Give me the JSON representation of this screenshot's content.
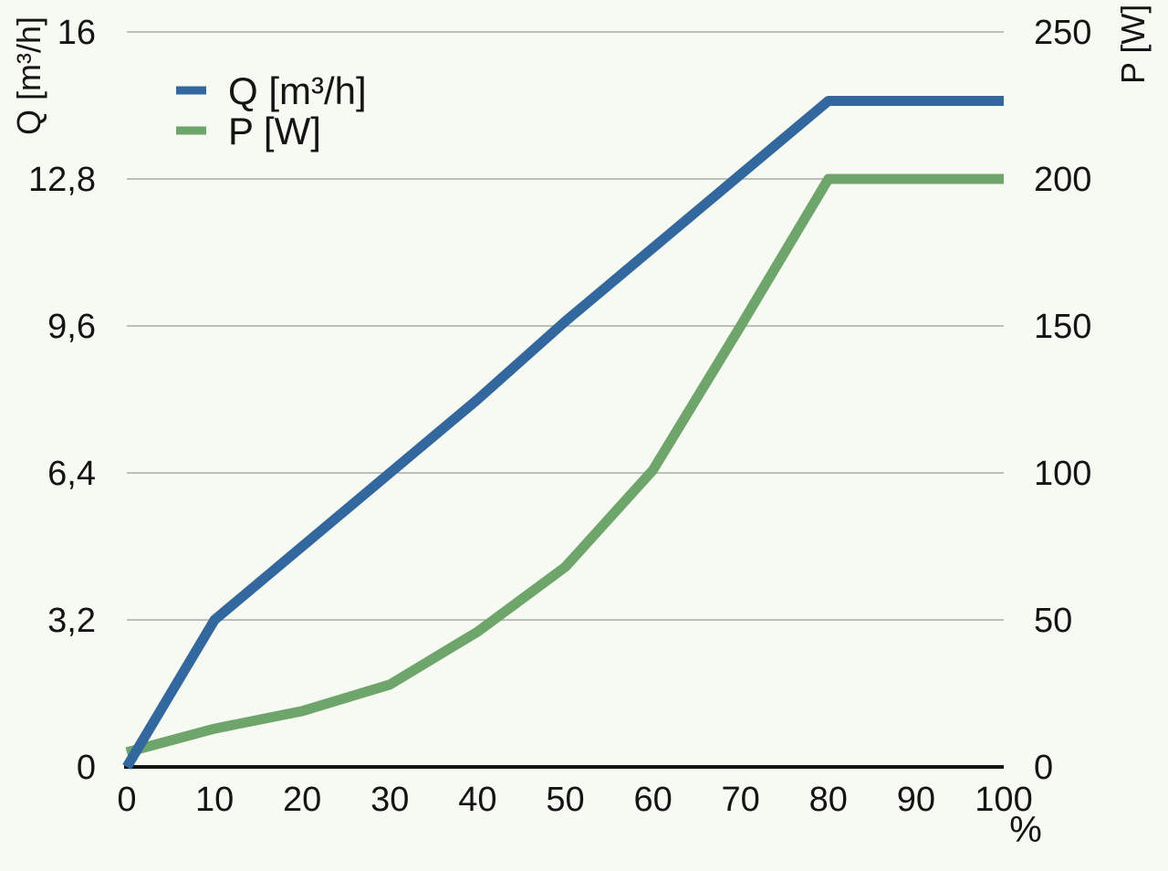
{
  "colors": {
    "background": "#f7faf2",
    "grid": "#bdbdbd",
    "axis": "#141414",
    "text": "#141414",
    "q_series": "#33689e",
    "p_series": "#6da56a"
  },
  "legend": {
    "position": "top-left-inside"
  },
  "chart_data": {
    "type": "line",
    "x": [
      0,
      10,
      20,
      30,
      40,
      50,
      60,
      70,
      80,
      90,
      100
    ],
    "x_axis": {
      "label": "%",
      "ticks": [
        "0",
        "10",
        "20",
        "30",
        "40",
        "50",
        "60",
        "70",
        "80",
        "90",
        "100"
      ],
      "tick_values": [
        0,
        10,
        20,
        30,
        40,
        50,
        60,
        70,
        80,
        90,
        100
      ],
      "min": 0,
      "max": 100
    },
    "left_axis": {
      "label": "Q [m³/h]",
      "ticks": [
        "0",
        "3,2",
        "6,4",
        "9,6",
        "12,8",
        "16"
      ],
      "tick_values": [
        0,
        3.2,
        6.4,
        9.6,
        12.8,
        16
      ],
      "min": 0,
      "max": 16
    },
    "right_axis": {
      "label": "P [W]",
      "ticks": [
        "0",
        "50",
        "100",
        "150",
        "200",
        "250"
      ],
      "tick_values": [
        0,
        50,
        100,
        150,
        200,
        250
      ],
      "min": 0,
      "max": 250
    },
    "series": [
      {
        "name": "Q [m³/h]",
        "axis": "left",
        "color": "#33689e",
        "values": [
          0,
          3.2,
          4.8,
          6.4,
          8.0,
          9.7,
          11.3,
          12.9,
          14.5,
          14.5,
          14.5
        ]
      },
      {
        "name": "P [W]",
        "axis": "right",
        "color": "#6da56a",
        "values": [
          5,
          13,
          19,
          28,
          46,
          68,
          101,
          150,
          200,
          200,
          200
        ]
      }
    ],
    "grid": "horizontal-only",
    "legend_position": "top-left-inside"
  }
}
